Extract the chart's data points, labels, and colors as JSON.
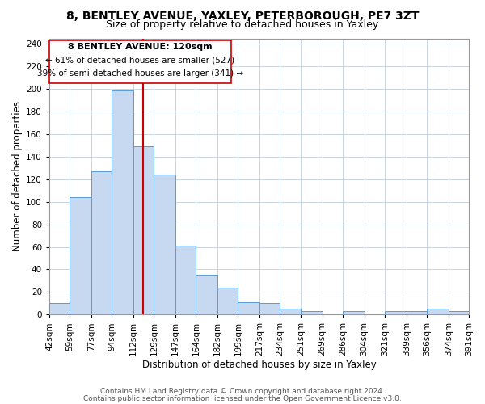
{
  "title1": "8, BENTLEY AVENUE, YAXLEY, PETERBOROUGH, PE7 3ZT",
  "title2": "Size of property relative to detached houses in Yaxley",
  "xlabel": "Distribution of detached houses by size in Yaxley",
  "ylabel": "Number of detached properties",
  "bin_labels": [
    "42sqm",
    "59sqm",
    "77sqm",
    "94sqm",
    "112sqm",
    "129sqm",
    "147sqm",
    "164sqm",
    "182sqm",
    "199sqm",
    "217sqm",
    "234sqm",
    "251sqm",
    "269sqm",
    "286sqm",
    "304sqm",
    "321sqm",
    "339sqm",
    "356sqm",
    "374sqm",
    "391sqm"
  ],
  "bar_heights": [
    10,
    104,
    127,
    199,
    149,
    124,
    61,
    35,
    24,
    11,
    10,
    5,
    3,
    0,
    3,
    0,
    3,
    3,
    5,
    3
  ],
  "bar_color": "#c6d9f0",
  "bar_edge_color": "#5b9bd5",
  "vline_x": 120,
  "annotation_line1": "8 BENTLEY AVENUE: 120sqm",
  "annotation_line2": "← 61% of detached houses are smaller (527)",
  "annotation_line3": "39% of semi-detached houses are larger (341) →",
  "vline_color": "#cc0000",
  "box_color": "#cc0000",
  "ylim": [
    0,
    245
  ],
  "yticks": [
    0,
    20,
    40,
    60,
    80,
    100,
    120,
    140,
    160,
    180,
    200,
    220,
    240
  ],
  "footer1": "Contains HM Land Registry data © Crown copyright and database right 2024.",
  "footer2": "Contains public sector information licensed under the Open Government Licence v3.0.",
  "bg_color": "#ffffff",
  "grid_color": "#c8d4e0",
  "title_fontsize": 10,
  "subtitle_fontsize": 9,
  "axis_label_fontsize": 8.5,
  "tick_fontsize": 7.5,
  "footer_fontsize": 6.5,
  "annotation_fontsize": 8
}
